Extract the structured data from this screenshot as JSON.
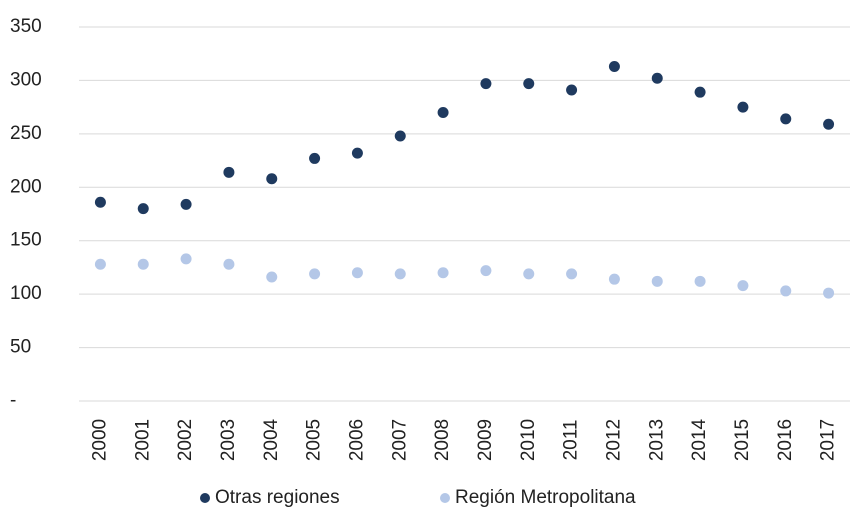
{
  "chart_data": {
    "type": "scatter",
    "categories": [
      "2000",
      "2001",
      "2002",
      "2003",
      "2004",
      "2005",
      "2006",
      "2007",
      "2008",
      "2009",
      "2010",
      "2011",
      "2012",
      "2013",
      "2014",
      "2015",
      "2016",
      "2017"
    ],
    "series": [
      {
        "name": "Otras regiones",
        "color": "#1f3a5f",
        "values": [
          186,
          180,
          184,
          214,
          208,
          227,
          232,
          248,
          270,
          297,
          297,
          291,
          313,
          302,
          289,
          275,
          264,
          259
        ]
      },
      {
        "name": "Región Metropolitana",
        "color": "#b4c7e7",
        "values": [
          128,
          128,
          133,
          128,
          116,
          119,
          120,
          119,
          120,
          122,
          119,
          119,
          114,
          112,
          112,
          108,
          103,
          101
        ]
      }
    ],
    "ylim": [
      0,
      350
    ],
    "yticks": [
      {
        "value": 0,
        "label": "-"
      },
      50,
      100,
      150,
      200,
      250,
      300,
      350
    ],
    "grid": true,
    "legend": "bottom"
  }
}
